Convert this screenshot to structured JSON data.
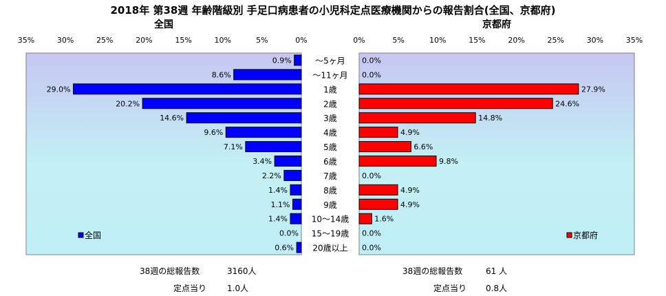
{
  "title": "2018年 第38週 年齢階級別 手足口病患者の小児科定点医療機関からの報告割合(全国、京都府)",
  "chart_data": {
    "type": "bar",
    "orientation": "horizontal",
    "layout": "mirrored",
    "categories": [
      "～5ヶ月",
      "～11ヶ月",
      "1歳",
      "2歳",
      "3歳",
      "4歳",
      "5歳",
      "6歳",
      "7歳",
      "8歳",
      "9歳",
      "10～14歳",
      "15～19歳",
      "20歳以上"
    ],
    "value_format": "percent_one_decimal",
    "panels": [
      {
        "heading": "全国",
        "series": [
          {
            "name": "全国",
            "color": "#0000ff",
            "values": [
              0.9,
              8.6,
              29.0,
              20.2,
              14.6,
              9.6,
              7.1,
              3.4,
              2.2,
              1.4,
              1.1,
              1.4,
              0.0,
              0.6
            ]
          }
        ],
        "ticks": [
          "35%",
          "30%",
          "25%",
          "20%",
          "15%",
          "10%",
          "5%",
          "0%"
        ],
        "xlim": [
          0,
          35
        ],
        "direction": "reversed",
        "legend": "bottom-left"
      },
      {
        "heading": "京都府",
        "series": [
          {
            "name": "京都府",
            "color": "#ff0000",
            "values": [
              0.0,
              0.0,
              27.9,
              24.6,
              14.8,
              4.9,
              6.6,
              9.8,
              0.0,
              4.9,
              4.9,
              1.6,
              0.0,
              0.0
            ]
          }
        ],
        "ticks": [
          "0%",
          "5%",
          "10%",
          "15%",
          "20%",
          "25%",
          "30%",
          "35%"
        ],
        "xlim": [
          0,
          35
        ],
        "direction": "normal",
        "legend": "bottom-right"
      }
    ]
  },
  "stats": {
    "national_total_label": "38週の総報告数",
    "national_total_value": "3160人",
    "national_per_label": "定点当り",
    "national_per_value": "1.0人",
    "kyoto_total_label": "38週の総報告数",
    "kyoto_total_value": "61 人",
    "kyoto_per_label": "定点当り",
    "kyoto_per_value": "0.8人"
  }
}
